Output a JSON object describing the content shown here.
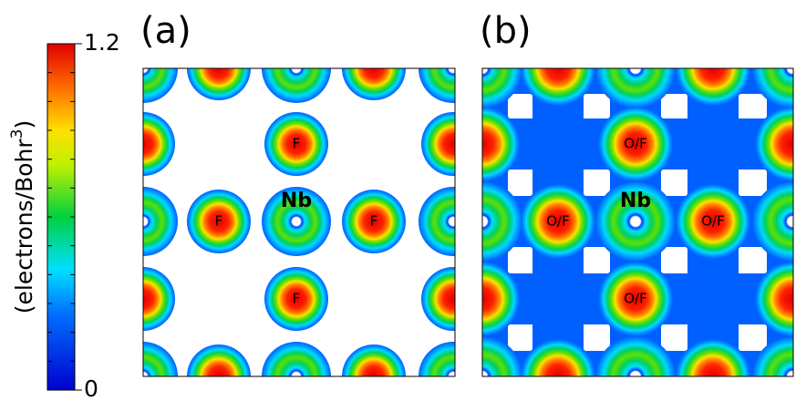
{
  "colorbar": {
    "label": "(electrons/Bohr",
    "label_sup": "3",
    "label_end": ")",
    "ticks": [
      0,
      1.2
    ]
  },
  "panels": [
    {
      "label": "(a)",
      "site_labels": [
        "Nb",
        "F",
        "F",
        "F",
        "F"
      ]
    },
    {
      "label": "(b)",
      "site_labels": [
        "Nb",
        "O/F",
        "O/F",
        "O/F",
        "O/F"
      ]
    }
  ]
}
